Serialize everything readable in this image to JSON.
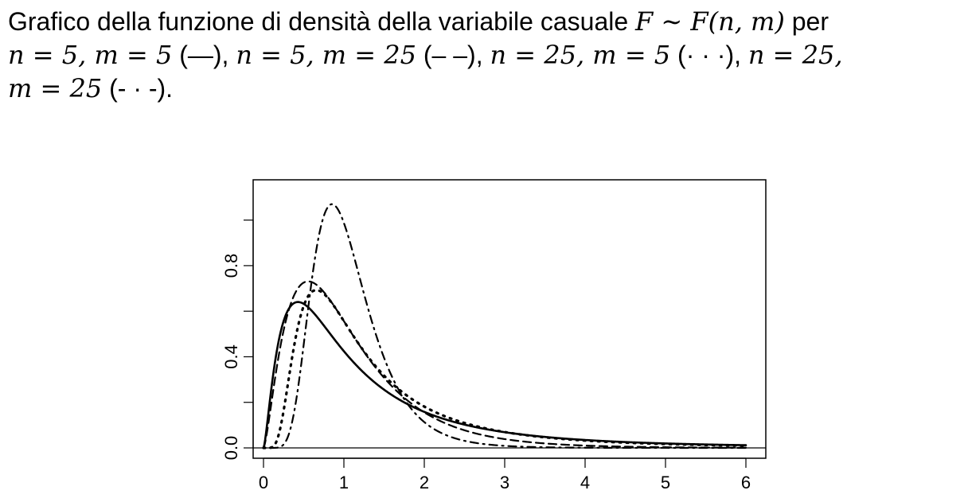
{
  "caption": {
    "line1_text": "Grafico della funzione di densità della variabile casuale",
    "line1_math": "F ∼ F(n, m)",
    "line1_end": "per",
    "line2": [
      {
        "text": "n = 5, m = 5",
        "style": "(—)"
      },
      {
        "text": "n = 5, m = 25",
        "style": "(– –)"
      },
      {
        "text": "n = 25, m = 5",
        "style": "(· · ·)"
      },
      {
        "text": "n = 25,",
        "style": ""
      }
    ],
    "line3_math": "m = 25",
    "line3_style": "(- · -)."
  },
  "chart_data": {
    "type": "line",
    "xlim": [
      0,
      6
    ],
    "ylim": [
      0,
      1.1
    ],
    "x_ticks": [
      "0",
      "1",
      "2",
      "3",
      "4",
      "5",
      "6"
    ],
    "y_ticks": [
      "0.0",
      "0.4",
      "0.8"
    ],
    "y_minor_ticks": [
      0.2,
      0.6,
      1.0
    ],
    "reference_line": 0,
    "series": [
      {
        "n": 5,
        "m": 5,
        "dash": "solid",
        "peak": [
          0.43,
          0.64
        ]
      },
      {
        "n": 5,
        "m": 25,
        "dash": "dashed",
        "peak": [
          0.55,
          0.73
        ]
      },
      {
        "n": 25,
        "m": 5,
        "dash": "dotted",
        "peak": [
          0.65,
          0.71
        ]
      },
      {
        "n": 25,
        "m": 25,
        "dash": "dotdash",
        "peak": [
          0.85,
          1.07
        ]
      }
    ]
  }
}
